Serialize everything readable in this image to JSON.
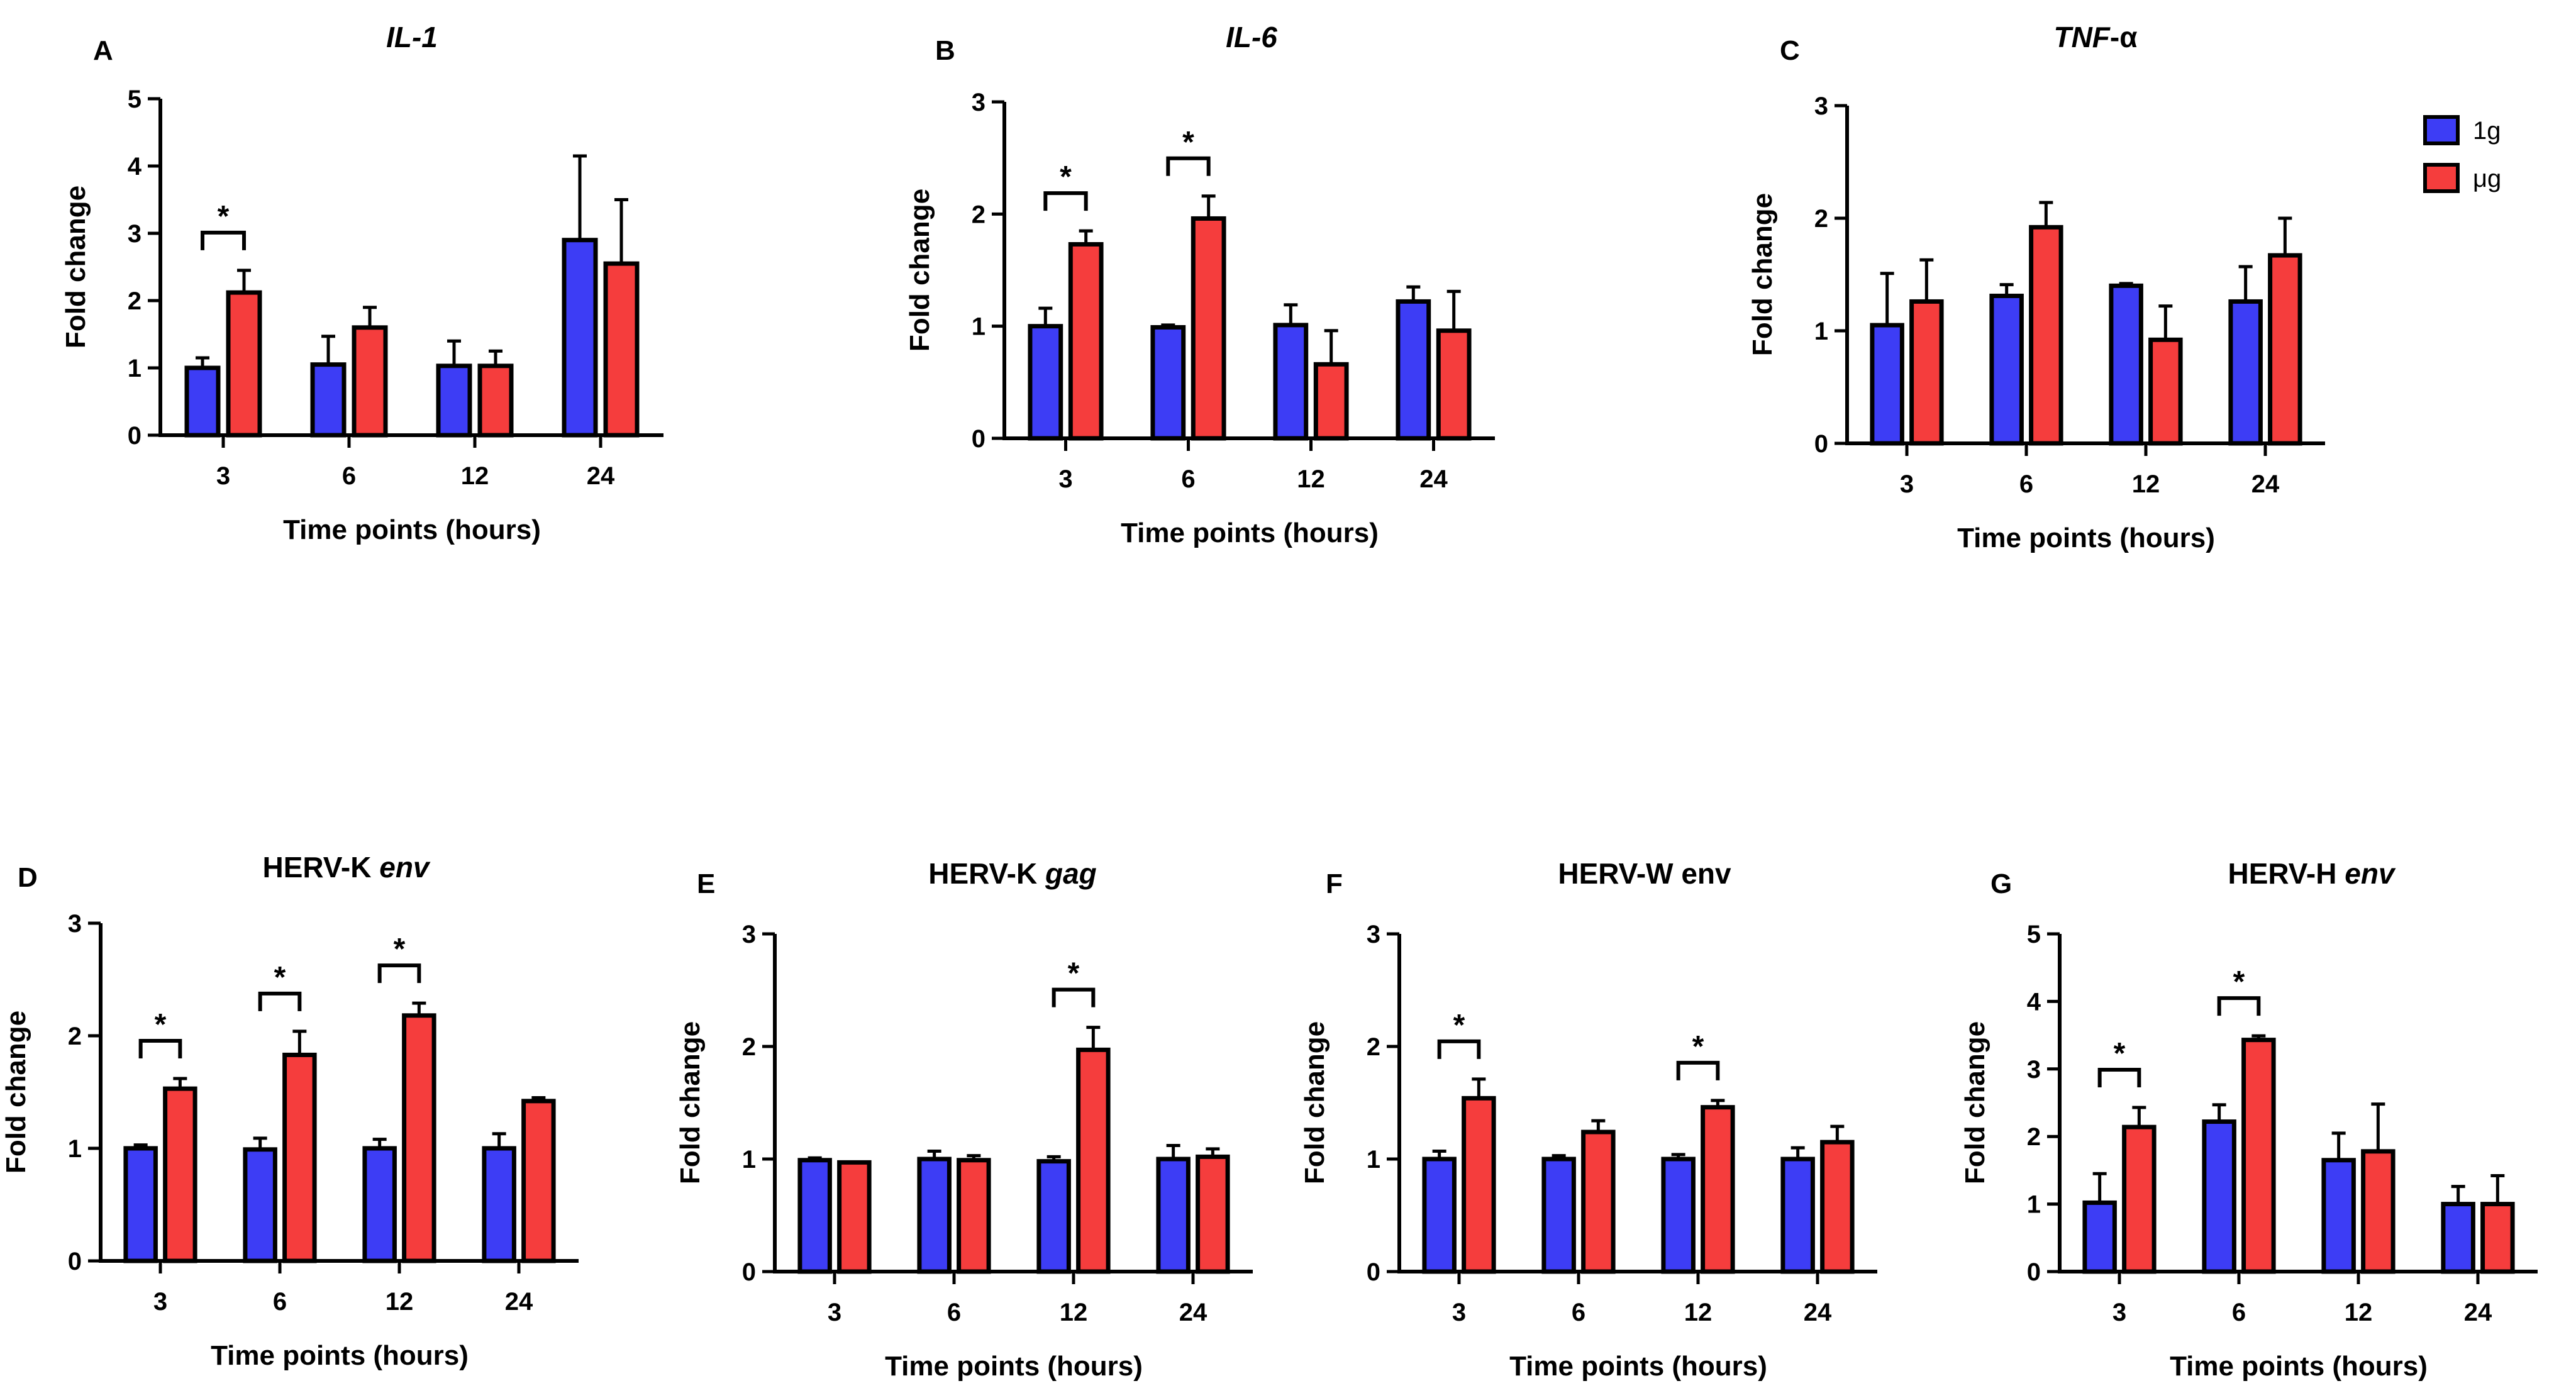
{
  "colors": {
    "1g": "#3d3df5",
    "ug": "#f53d3d",
    "axis": "#000000"
  },
  "legend": {
    "entries": [
      {
        "label": "1g",
        "color": "#3d3df5"
      },
      {
        "label": "μg",
        "color": "#f53d3d"
      }
    ]
  },
  "chart_data": [
    {
      "panel": "A",
      "type": "bar",
      "title": "IL-1",
      "title_parts": [
        {
          "text": "IL-1",
          "italic": true
        }
      ],
      "xlabel": "Time points (hours)",
      "ylabel": "Fold change",
      "categories": [
        "3",
        "6",
        "12",
        "24"
      ],
      "ylim": [
        0,
        5
      ],
      "yticks": [
        0,
        1,
        2,
        3,
        4,
        5
      ],
      "series": [
        {
          "name": "1g",
          "values": [
            1.0,
            1.05,
            1.03,
            2.9
          ],
          "errors": [
            0.15,
            0.42,
            0.37,
            1.25
          ]
        },
        {
          "name": "μg",
          "values": [
            2.12,
            1.6,
            1.03,
            2.55
          ],
          "errors": [
            0.33,
            0.3,
            0.22,
            0.95
          ]
        }
      ],
      "significance": [
        {
          "category": "3",
          "label": "*"
        }
      ]
    },
    {
      "panel": "B",
      "type": "bar",
      "title": "IL-6",
      "title_parts": [
        {
          "text": "IL-6",
          "italic": true
        }
      ],
      "xlabel": "Time points (hours)",
      "ylabel": "Fold change",
      "categories": [
        "3",
        "6",
        "12",
        "24"
      ],
      "ylim": [
        0,
        3
      ],
      "yticks": [
        0,
        1,
        2,
        3
      ],
      "series": [
        {
          "name": "1g",
          "values": [
            1.0,
            0.99,
            1.01,
            1.22
          ],
          "errors": [
            0.16,
            0.02,
            0.18,
            0.13
          ]
        },
        {
          "name": "μg",
          "values": [
            1.73,
            1.96,
            0.66,
            0.96
          ],
          "errors": [
            0.12,
            0.2,
            0.3,
            0.35
          ]
        }
      ],
      "significance": [
        {
          "category": "3",
          "label": "*"
        },
        {
          "category": "6",
          "label": "*"
        }
      ]
    },
    {
      "panel": "C",
      "type": "bar",
      "title": "TNF-α",
      "title_parts": [
        {
          "text": "TNF",
          "italic": true
        },
        {
          "text": "-α",
          "italic": false
        }
      ],
      "xlabel": "Time points (hours)",
      "ylabel": "Fold change",
      "categories": [
        "3",
        "6",
        "12",
        "24"
      ],
      "ylim": [
        0,
        3
      ],
      "yticks": [
        0,
        1,
        2,
        3
      ],
      "series": [
        {
          "name": "1g",
          "values": [
            1.05,
            1.31,
            1.4,
            1.26
          ],
          "errors": [
            0.46,
            0.1,
            0.02,
            0.31
          ]
        },
        {
          "name": "μg",
          "values": [
            1.26,
            1.92,
            0.92,
            1.67
          ],
          "errors": [
            0.37,
            0.22,
            0.3,
            0.33
          ]
        }
      ],
      "significance": []
    },
    {
      "panel": "D",
      "type": "bar",
      "title": "HERV-K env",
      "title_parts": [
        {
          "text": "HERV-K ",
          "italic": false
        },
        {
          "text": "env",
          "italic": true
        }
      ],
      "xlabel": "Time points (hours)",
      "ylabel": "Fold change",
      "categories": [
        "3",
        "6",
        "12",
        "24"
      ],
      "ylim": [
        0,
        3
      ],
      "yticks": [
        0,
        1,
        2,
        3
      ],
      "series": [
        {
          "name": "1g",
          "values": [
            1.0,
            0.99,
            1.0,
            1.0
          ],
          "errors": [
            0.03,
            0.1,
            0.08,
            0.13
          ]
        },
        {
          "name": "μg",
          "values": [
            1.53,
            1.83,
            2.18,
            1.42
          ],
          "errors": [
            0.09,
            0.21,
            0.11,
            0.03
          ]
        }
      ],
      "significance": [
        {
          "category": "3",
          "label": "*"
        },
        {
          "category": "6",
          "label": "*"
        },
        {
          "category": "12",
          "label": "*"
        }
      ]
    },
    {
      "panel": "E",
      "type": "bar",
      "title": "HERV-K gag",
      "title_parts": [
        {
          "text": "HERV-K ",
          "italic": false
        },
        {
          "text": "gag",
          "italic": true
        }
      ],
      "xlabel": "Time points (hours)",
      "ylabel": "Fold change",
      "categories": [
        "3",
        "6",
        "12",
        "24"
      ],
      "ylim": [
        0,
        3
      ],
      "yticks": [
        0,
        1,
        2,
        3
      ],
      "series": [
        {
          "name": "1g",
          "values": [
            0.99,
            1.0,
            0.98,
            1.0
          ],
          "errors": [
            0.02,
            0.07,
            0.04,
            0.12
          ]
        },
        {
          "name": "μg",
          "values": [
            0.97,
            0.99,
            1.97,
            1.02
          ],
          "errors": [
            0.0,
            0.04,
            0.2,
            0.07
          ]
        }
      ],
      "significance": [
        {
          "category": "12",
          "label": "*"
        }
      ]
    },
    {
      "panel": "F",
      "type": "bar",
      "title": "HERV-W env",
      "title_parts": [
        {
          "text": "HERV-W env",
          "italic": false
        }
      ],
      "xlabel": "Time points (hours)",
      "ylabel": "Fold change",
      "categories": [
        "3",
        "6",
        "12",
        "24"
      ],
      "ylim": [
        0,
        3
      ],
      "yticks": [
        0,
        1,
        2,
        3
      ],
      "series": [
        {
          "name": "1g",
          "values": [
            1.0,
            1.0,
            1.0,
            1.0
          ],
          "errors": [
            0.07,
            0.03,
            0.04,
            0.1
          ]
        },
        {
          "name": "μg",
          "values": [
            1.54,
            1.24,
            1.46,
            1.15
          ],
          "errors": [
            0.17,
            0.1,
            0.06,
            0.14
          ]
        }
      ],
      "significance": [
        {
          "category": "3",
          "label": "*"
        },
        {
          "category": "12",
          "label": "*"
        }
      ]
    },
    {
      "panel": "G",
      "type": "bar",
      "title": "HERV-H env",
      "title_parts": [
        {
          "text": "HERV-H ",
          "italic": false
        },
        {
          "text": "env",
          "italic": true
        }
      ],
      "xlabel": "Time points (hours)",
      "ylabel": "Fold change",
      "categories": [
        "3",
        "6",
        "12",
        "24"
      ],
      "ylim": [
        0,
        5
      ],
      "yticks": [
        0,
        1,
        2,
        3,
        4,
        5
      ],
      "series": [
        {
          "name": "1g",
          "values": [
            1.02,
            2.22,
            1.65,
            1.0
          ],
          "errors": [
            0.43,
            0.25,
            0.4,
            0.26
          ]
        },
        {
          "name": "μg",
          "values": [
            2.14,
            3.43,
            1.78,
            1.0
          ],
          "errors": [
            0.29,
            0.06,
            0.7,
            0.42
          ]
        }
      ],
      "significance": [
        {
          "category": "3",
          "label": "*"
        },
        {
          "category": "6",
          "label": "*"
        }
      ]
    }
  ]
}
